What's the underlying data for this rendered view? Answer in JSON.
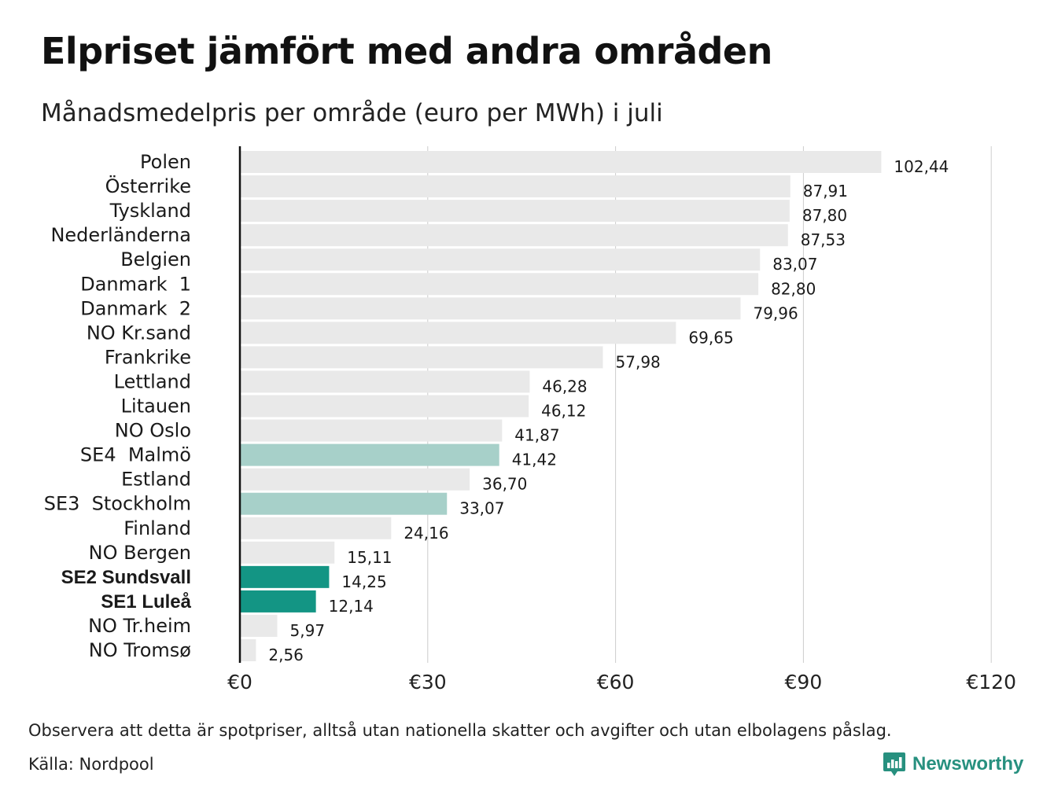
{
  "title": "Elpriset jämfört med andra områden",
  "subtitle": "Månadsmedelpris per område (euro per MWh) i juli",
  "footnote": "Observera att detta är spotpriser, alltså utan nationella skatter och avgifter och utan elbolagens påslag.",
  "source": "Källa: Nordpool",
  "brand": {
    "name": "Newsworthy",
    "icon": "newsworthy-logo-icon",
    "color": "#27907f"
  },
  "colors": {
    "default": "#e9e9e9",
    "highlight_light": "#a7d0c9",
    "highlight_dark": "#139584",
    "gridline": "#cccccc",
    "axis": "#111111"
  },
  "chart_data": {
    "type": "bar",
    "orientation": "horizontal",
    "title": "Elpriset jämfört med andra områden",
    "subtitle": "Månadsmedelpris per område (euro per MWh) i juli",
    "xlim": [
      0,
      120
    ],
    "x_ticks": [
      0,
      30,
      60,
      90,
      120
    ],
    "x_tick_labels": [
      "€0",
      "€30",
      "€60",
      "€90",
      "€120"
    ],
    "grid": "vertical",
    "categories": [
      "Polen",
      "Österrike",
      "Tyskland",
      "Nederländerna",
      "Belgien",
      "Danmark  1",
      "Danmark  2",
      "NO Kr.sand",
      "Frankrike",
      "Lettland",
      "Litauen",
      "NO Oslo",
      "SE4  Malmö",
      "Estland",
      "SE3  Stockholm",
      "Finland",
      "NO Bergen",
      "SE2 Sundsvall",
      "SE1 Luleå",
      "NO Tr.heim",
      "NO Tromsø"
    ],
    "values": [
      102.44,
      87.91,
      87.8,
      87.53,
      83.07,
      82.8,
      79.96,
      69.65,
      57.98,
      46.28,
      46.12,
      41.87,
      41.42,
      36.7,
      33.07,
      24.16,
      15.11,
      14.25,
      12.14,
      5.97,
      2.56
    ],
    "value_labels": [
      "102,44",
      "87,91",
      "87,80",
      "87,53",
      "83,07",
      "82,80",
      "79,96",
      "69,65",
      "57,98",
      "46,28",
      "46,12",
      "41,87",
      "41,42",
      "36,70",
      "33,07",
      "24,16",
      "15,11",
      "14,25",
      "12,14",
      "5,97",
      "2,56"
    ],
    "highlight": [
      "default",
      "default",
      "default",
      "default",
      "default",
      "default",
      "default",
      "default",
      "default",
      "default",
      "default",
      "default",
      "highlight_light",
      "default",
      "highlight_light",
      "default",
      "default",
      "highlight_dark",
      "highlight_dark",
      "default",
      "default"
    ],
    "bold_labels": [
      "SE2 Sundsvall",
      "SE1 Luleå"
    ]
  }
}
